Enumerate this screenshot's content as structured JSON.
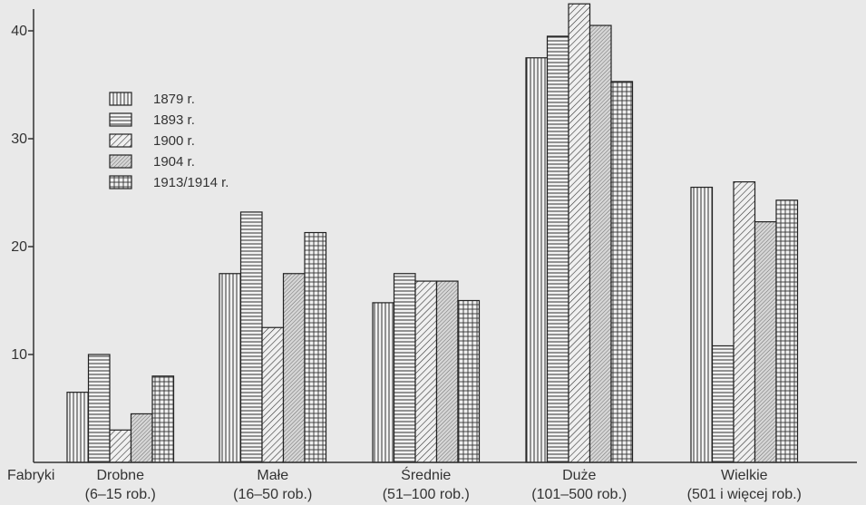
{
  "chart_data": {
    "type": "bar",
    "xlabel": "Fabryki",
    "ylabel": "",
    "ylim": [
      0,
      45
    ],
    "yticks": [
      10,
      20,
      30,
      40
    ],
    "grid": false,
    "legend_position": "top-left",
    "categories": [
      {
        "name": "Drobne",
        "range": "(6–15 rob.)"
      },
      {
        "name": "Małe",
        "range": "(16–50 rob.)"
      },
      {
        "name": "Średnie",
        "range": "(51–100 rob.)"
      },
      {
        "name": "Duże",
        "range": "(101–500 rob.)"
      },
      {
        "name": "Wielkie",
        "range": "(501 i więcej rob.)"
      }
    ],
    "series": [
      {
        "name": "1879 r.",
        "values": [
          6.5,
          17.5,
          14.8,
          37.5,
          25.5
        ],
        "pattern": "vertical"
      },
      {
        "name": "1893 r.",
        "values": [
          10,
          23.2,
          17.5,
          39.5,
          10.8
        ],
        "pattern": "horizontal"
      },
      {
        "name": "1900 r.",
        "values": [
          3,
          12.5,
          16.8,
          42.5,
          26
        ],
        "pattern": "diagonal"
      },
      {
        "name": "1904 r.",
        "values": [
          4.5,
          17.5,
          16.8,
          40.5,
          22.3
        ],
        "pattern": "dense"
      },
      {
        "name": "1913/1914 r.",
        "values": [
          8,
          21.3,
          15,
          35.3,
          24.3
        ],
        "pattern": "grid"
      }
    ]
  }
}
